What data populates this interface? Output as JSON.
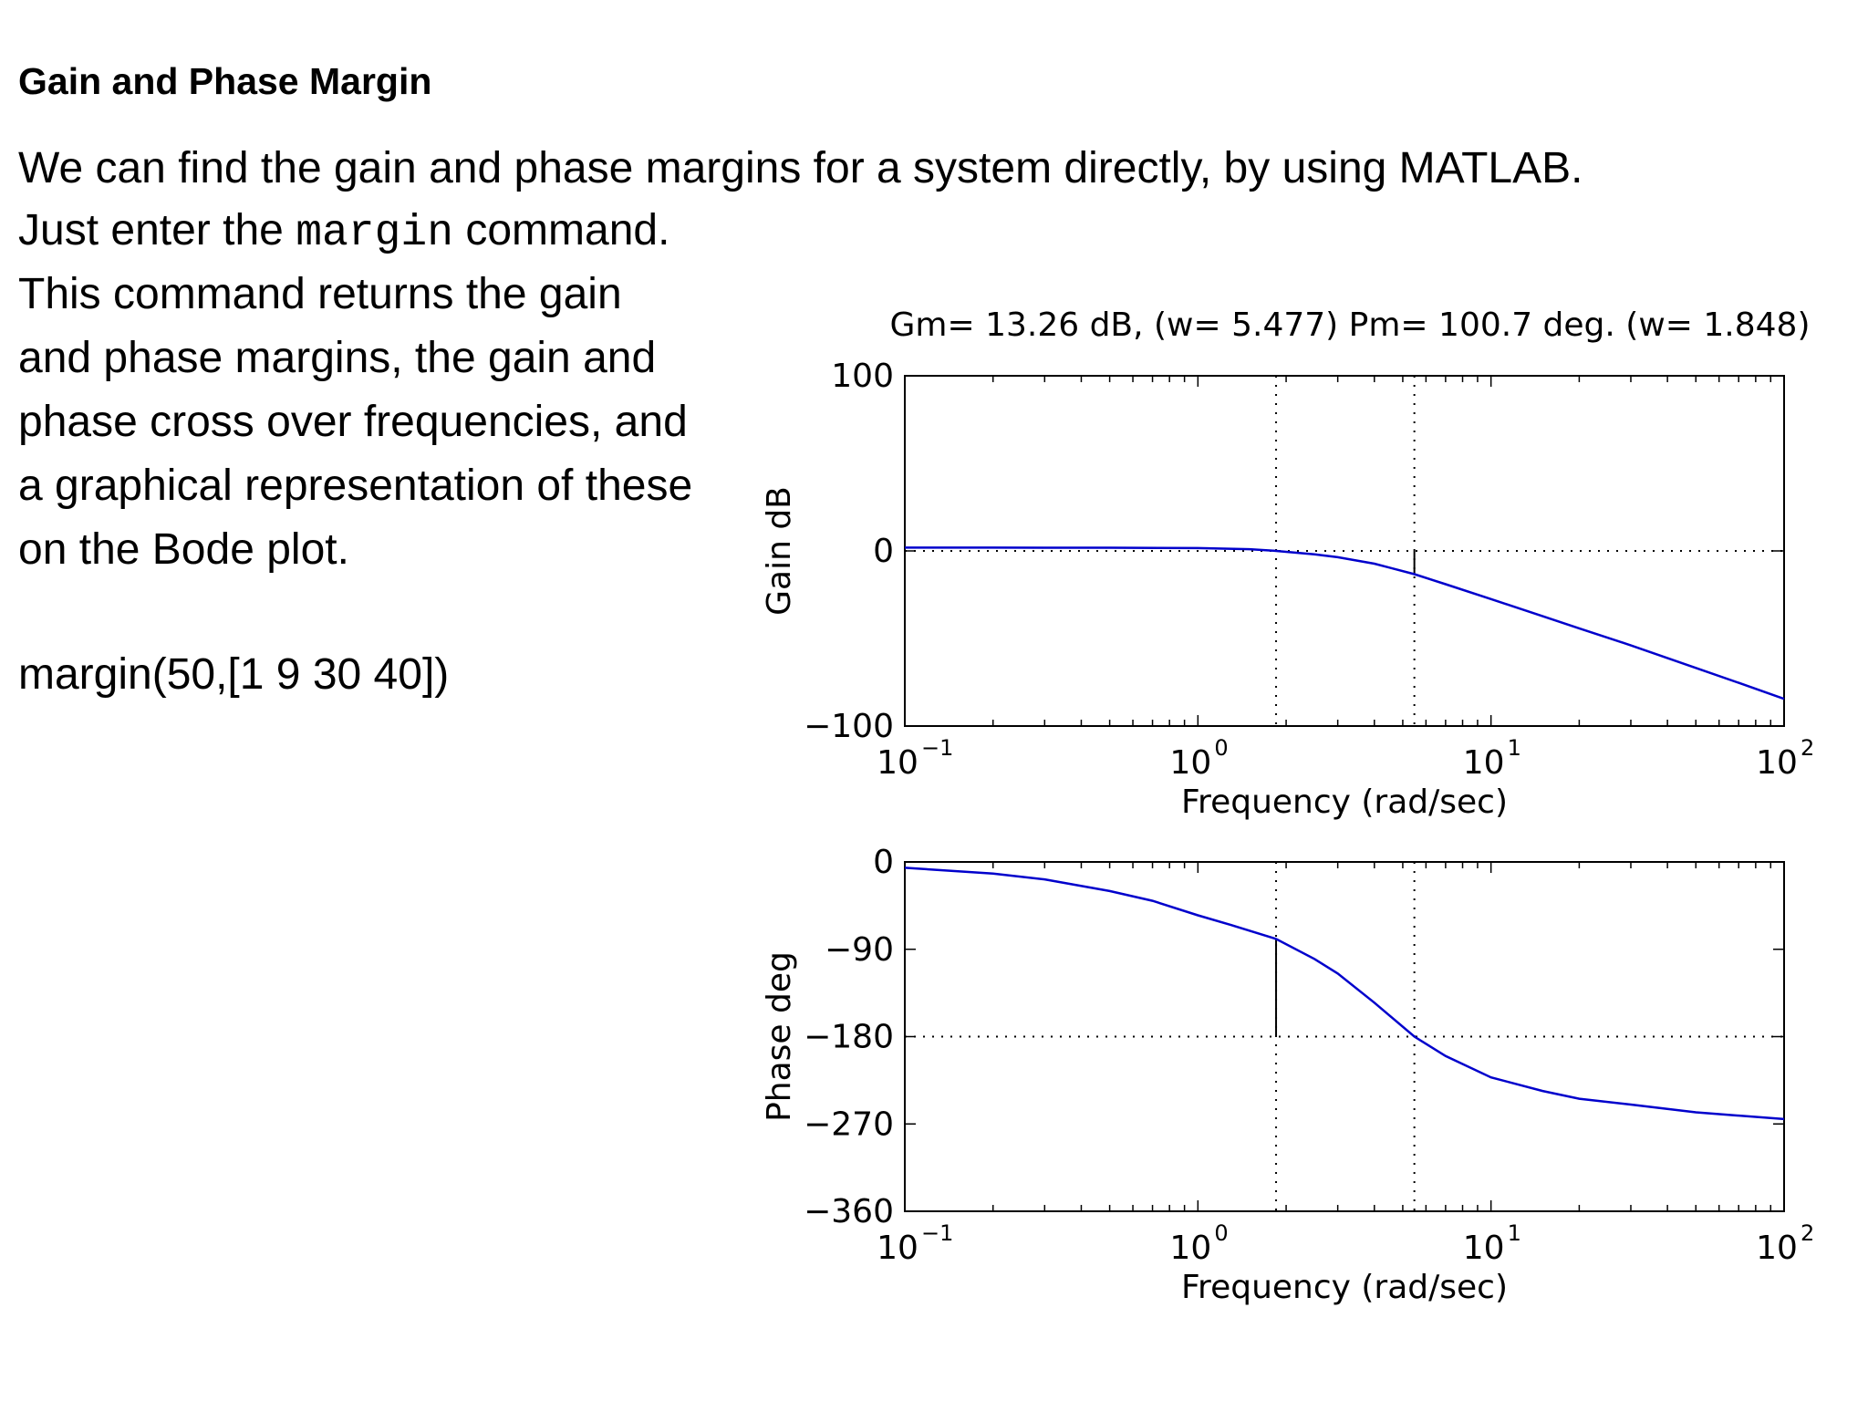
{
  "slide": {
    "title": "Gain and Phase Margin",
    "line1": "We can find the gain and phase margins for a system directly, by using MATLAB.",
    "line2_pre": "Just enter the",
    "line2_code": "margin",
    "line2_post": "command.",
    "para": [
      "This command returns the gain",
      "and  phase margins, the gain and",
      "phase cross over frequencies, and",
      "a graphical representation of these",
      "on the Bode plot."
    ],
    "code_line": "margin(50,[1 9 30 40])"
  },
  "chart_data": [
    {
      "type": "line",
      "title": "Gm= 13.26 dB, (w=  5.477)    Pm= 100.7 deg. (w= 1.848)",
      "xlabel": "Frequency (rad/sec)",
      "ylabel": "Gain dB",
      "xscale": "log",
      "xlim": [
        0.1,
        100
      ],
      "ylim": [
        -100,
        100
      ],
      "yticks": [
        {
          "value": 100,
          "label": "100"
        },
        {
          "value": 0,
          "label": "0"
        },
        {
          "value": -100,
          "label": "−100"
        }
      ],
      "xticks": [
        {
          "value": 0.1,
          "base": "10",
          "exp": "−1"
        },
        {
          "value": 1,
          "base": "10",
          "exp": "0"
        },
        {
          "value": 10,
          "base": "10",
          "exp": "1"
        },
        {
          "value": 100,
          "base": "10",
          "exp": "2"
        }
      ],
      "series": [
        {
          "color": "#0000cc",
          "x": [
            0.1,
            0.2,
            0.5,
            1,
            1.5,
            1.848,
            2.5,
            3,
            4,
            5.477,
            7,
            10,
            15,
            20,
            30,
            50,
            70,
            100
          ],
          "y": [
            1.9,
            1.9,
            1.8,
            1.6,
            1.0,
            0.0,
            -2.0,
            -3.6,
            -7.3,
            -13.3,
            -19.0,
            -27.5,
            -37.3,
            -44.2,
            -53.9,
            -66.8,
            -75.3,
            -84.5
          ]
        }
      ],
      "guides": {
        "x_gain_crossover": 1.848,
        "x_phase_crossover": 5.477,
        "y_ref": 0,
        "margin_bar": {
          "x": 5.477,
          "y_from": 0,
          "y_to": -13.26
        }
      },
      "line_color": "#0000cc",
      "grid": false
    },
    {
      "type": "line",
      "xlabel": "Frequency (rad/sec)",
      "ylabel": "Phase deg",
      "xscale": "log",
      "xlim": [
        0.1,
        100
      ],
      "ylim": [
        -360,
        0
      ],
      "yticks": [
        {
          "value": 0,
          "label": "0"
        },
        {
          "value": -90,
          "label": "−90"
        },
        {
          "value": -180,
          "label": "−180"
        },
        {
          "value": -270,
          "label": "−270"
        },
        {
          "value": -360,
          "label": "−360"
        }
      ],
      "xticks": [
        {
          "value": 0.1,
          "base": "10",
          "exp": "−1"
        },
        {
          "value": 1,
          "base": "10",
          "exp": "0"
        },
        {
          "value": 10,
          "base": "10",
          "exp": "1"
        },
        {
          "value": 100,
          "base": "10",
          "exp": "2"
        }
      ],
      "series": [
        {
          "color": "#0000cc",
          "x": [
            0.1,
            0.2,
            0.3,
            0.5,
            0.7,
            1,
            1.3,
            1.848,
            2.5,
            3,
            4,
            5.477,
            7,
            10,
            15,
            20,
            30,
            50,
            100
          ],
          "y": [
            -6,
            -12,
            -18,
            -30,
            -40,
            -55,
            -65,
            -79.3,
            -100,
            -115,
            -145,
            -180,
            -200,
            -222,
            -236,
            -244,
            -250,
            -258,
            -265
          ]
        }
      ],
      "guides": {
        "x_gain_crossover": 1.848,
        "x_phase_crossover": 5.477,
        "y_ref": -180,
        "margin_bar": {
          "x": 1.848,
          "y_from": -180,
          "y_to": -79.3
        }
      },
      "line_color": "#0000cc",
      "grid": false
    }
  ]
}
